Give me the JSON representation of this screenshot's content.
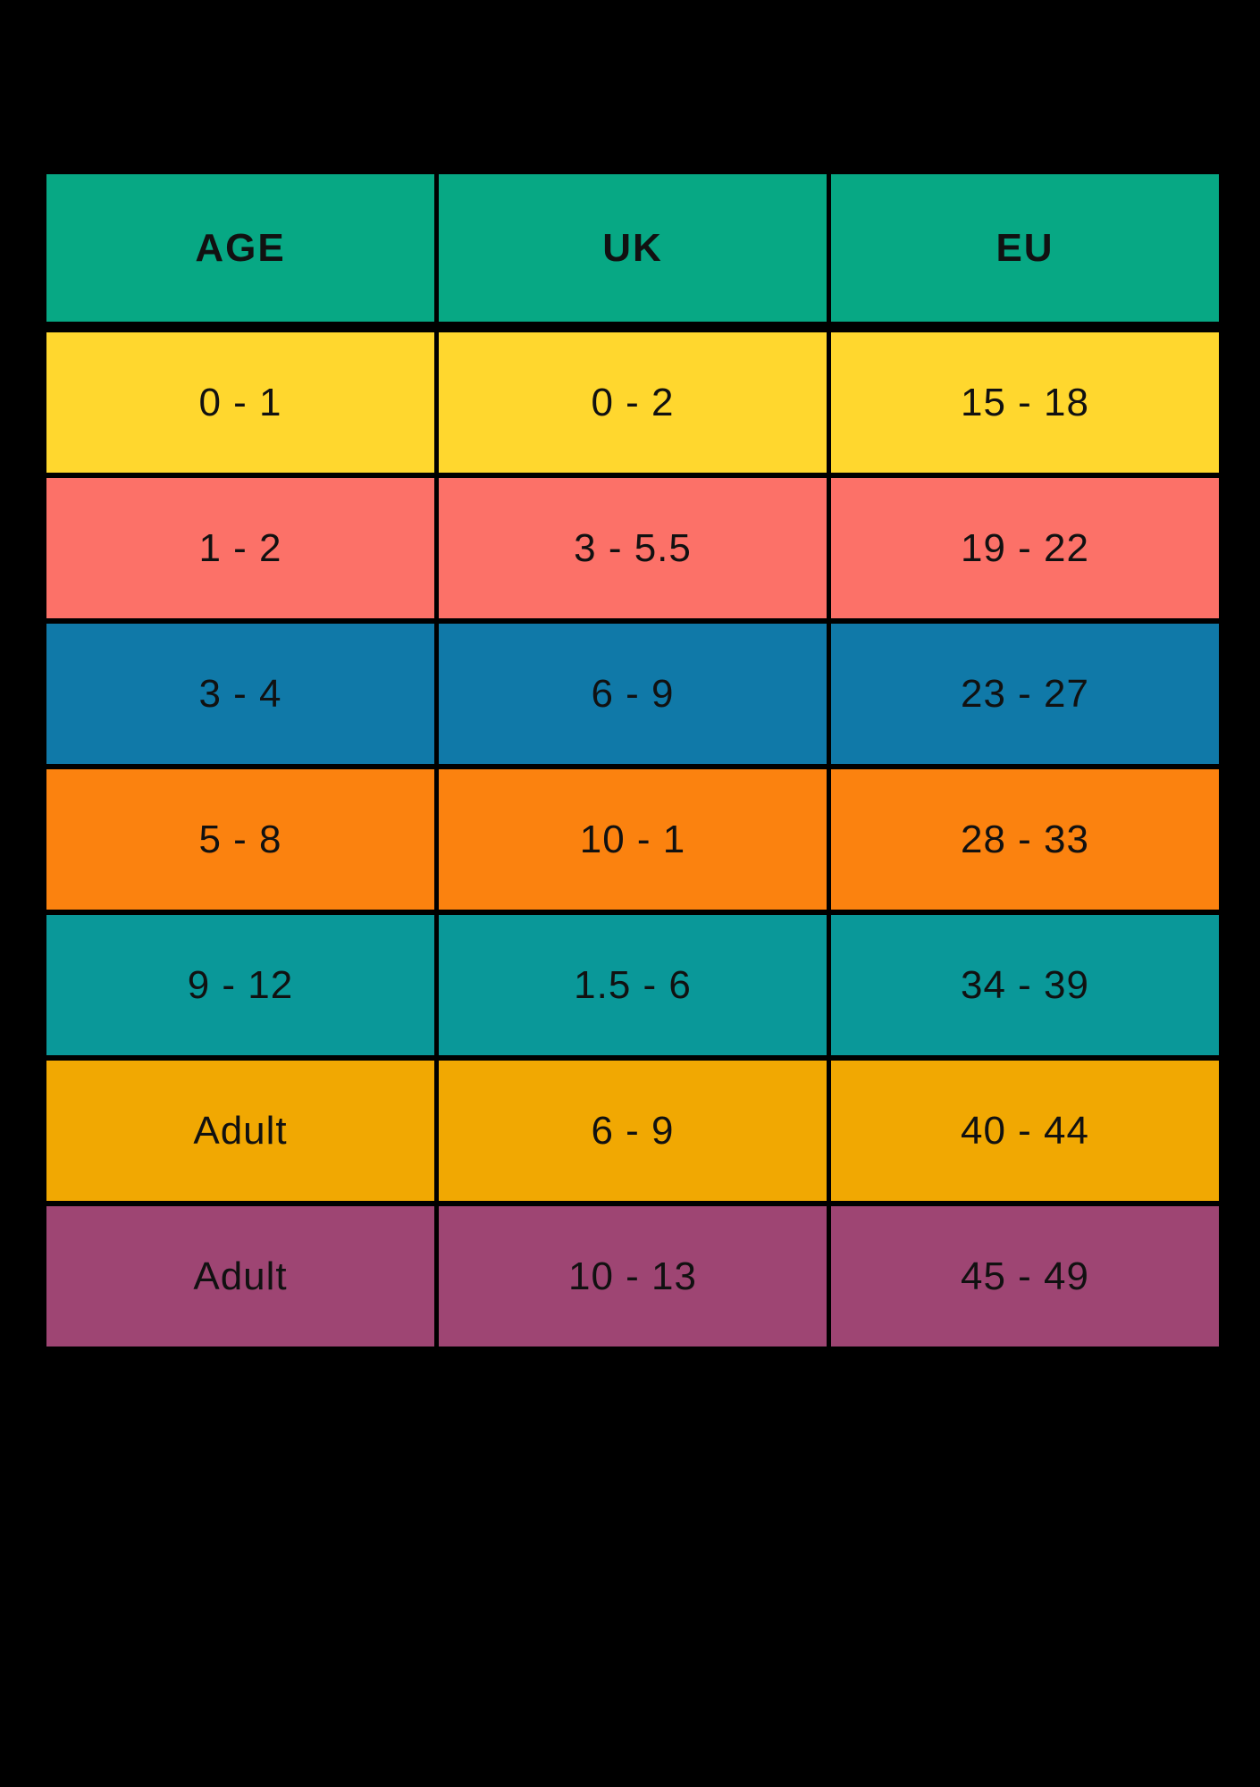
{
  "colors": {
    "page_background": "#000000",
    "header_green": "#07A884",
    "text": "#111111"
  },
  "table": {
    "headers": [
      "AGE",
      "UK",
      "EU"
    ],
    "rows": [
      {
        "age": "0 - 1",
        "uk": "0 - 2",
        "eu": "15 - 18",
        "color": "#FFD72E"
      },
      {
        "age": "1 - 2",
        "uk": "3 - 5.5",
        "eu": "19 - 22",
        "color": "#FC7168"
      },
      {
        "age": "3 - 4",
        "uk": "6 - 9",
        "eu": "23 - 27",
        "color": "#1079A8"
      },
      {
        "age": "5 - 8",
        "uk": "10 - 1",
        "eu": "28 - 33",
        "color": "#FB820F"
      },
      {
        "age": "9 - 12",
        "uk": "1.5 - 6",
        "eu": "34 - 39",
        "color": "#0A9899"
      },
      {
        "age": "Adult",
        "uk": "6 - 9",
        "eu": "40 - 44",
        "color": "#F1A802"
      },
      {
        "age": "Adult",
        "uk": "10 - 13",
        "eu": "45 - 49",
        "color": "#9E4573"
      }
    ]
  },
  "chart_data": {
    "type": "table",
    "title": "",
    "columns": [
      "AGE",
      "UK",
      "EU"
    ],
    "rows": [
      [
        "0 - 1",
        "0 - 2",
        "15 - 18"
      ],
      [
        "1 - 2",
        "3 - 5.5",
        "19 - 22"
      ],
      [
        "3 - 4",
        "6 - 9",
        "23 - 27"
      ],
      [
        "5 - 8",
        "10 - 1",
        "28 - 33"
      ],
      [
        "9 - 12",
        "1.5 - 6",
        "34 - 39"
      ],
      [
        "Adult",
        "6 - 9",
        "40 - 44"
      ],
      [
        "Adult",
        "10 - 13",
        "45 - 49"
      ]
    ],
    "row_colors": [
      "#FFD72E",
      "#FC7168",
      "#1079A8",
      "#FB820F",
      "#0A9899",
      "#F1A802",
      "#9E4573"
    ],
    "header_color": "#07A884",
    "layout": "3 equal columns, header row plus 7 data rows, black grid lines on black background"
  }
}
